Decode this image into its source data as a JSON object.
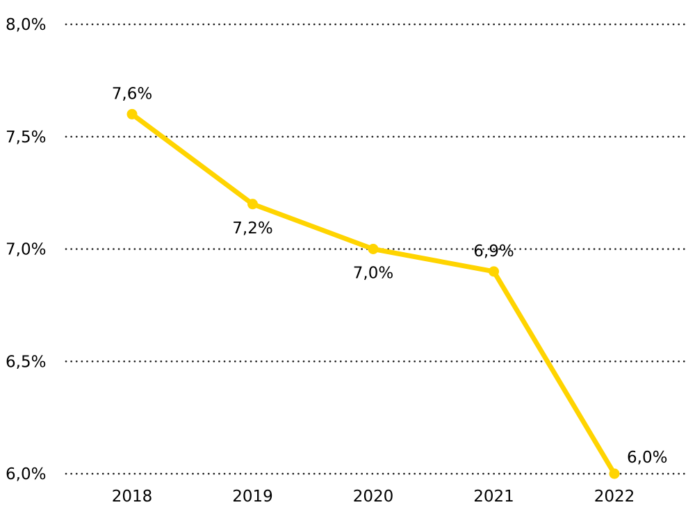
{
  "chart_data": {
    "type": "line",
    "title": "",
    "xlabel": "",
    "ylabel": "",
    "categories": [
      "2018",
      "2019",
      "2020",
      "2021",
      "2022"
    ],
    "series": [
      {
        "name": "value",
        "values": [
          7.6,
          7.2,
          7.0,
          6.9,
          6.0
        ],
        "data_labels": [
          "7,6%",
          "7,2%",
          "7,0%",
          "6,9%",
          "6,0%"
        ],
        "label_positions": [
          "above",
          "below",
          "below",
          "above",
          "right"
        ]
      }
    ],
    "ylim": [
      6.0,
      8.0
    ],
    "y_ticks": [
      {
        "value": 8.0,
        "label": "8,0%"
      },
      {
        "value": 7.5,
        "label": "7,5%"
      },
      {
        "value": 7.0,
        "label": "7,0%"
      },
      {
        "value": 6.5,
        "label": "6,5%"
      },
      {
        "value": 6.0,
        "label": "6,0%"
      }
    ],
    "grid": "horizontal-dotted",
    "legend": "none",
    "colors": {
      "line": "#FFD400",
      "marker": "#FFD400",
      "grid": "#1a1a1a",
      "text": "#000000",
      "background": "#FFFFFF"
    }
  }
}
